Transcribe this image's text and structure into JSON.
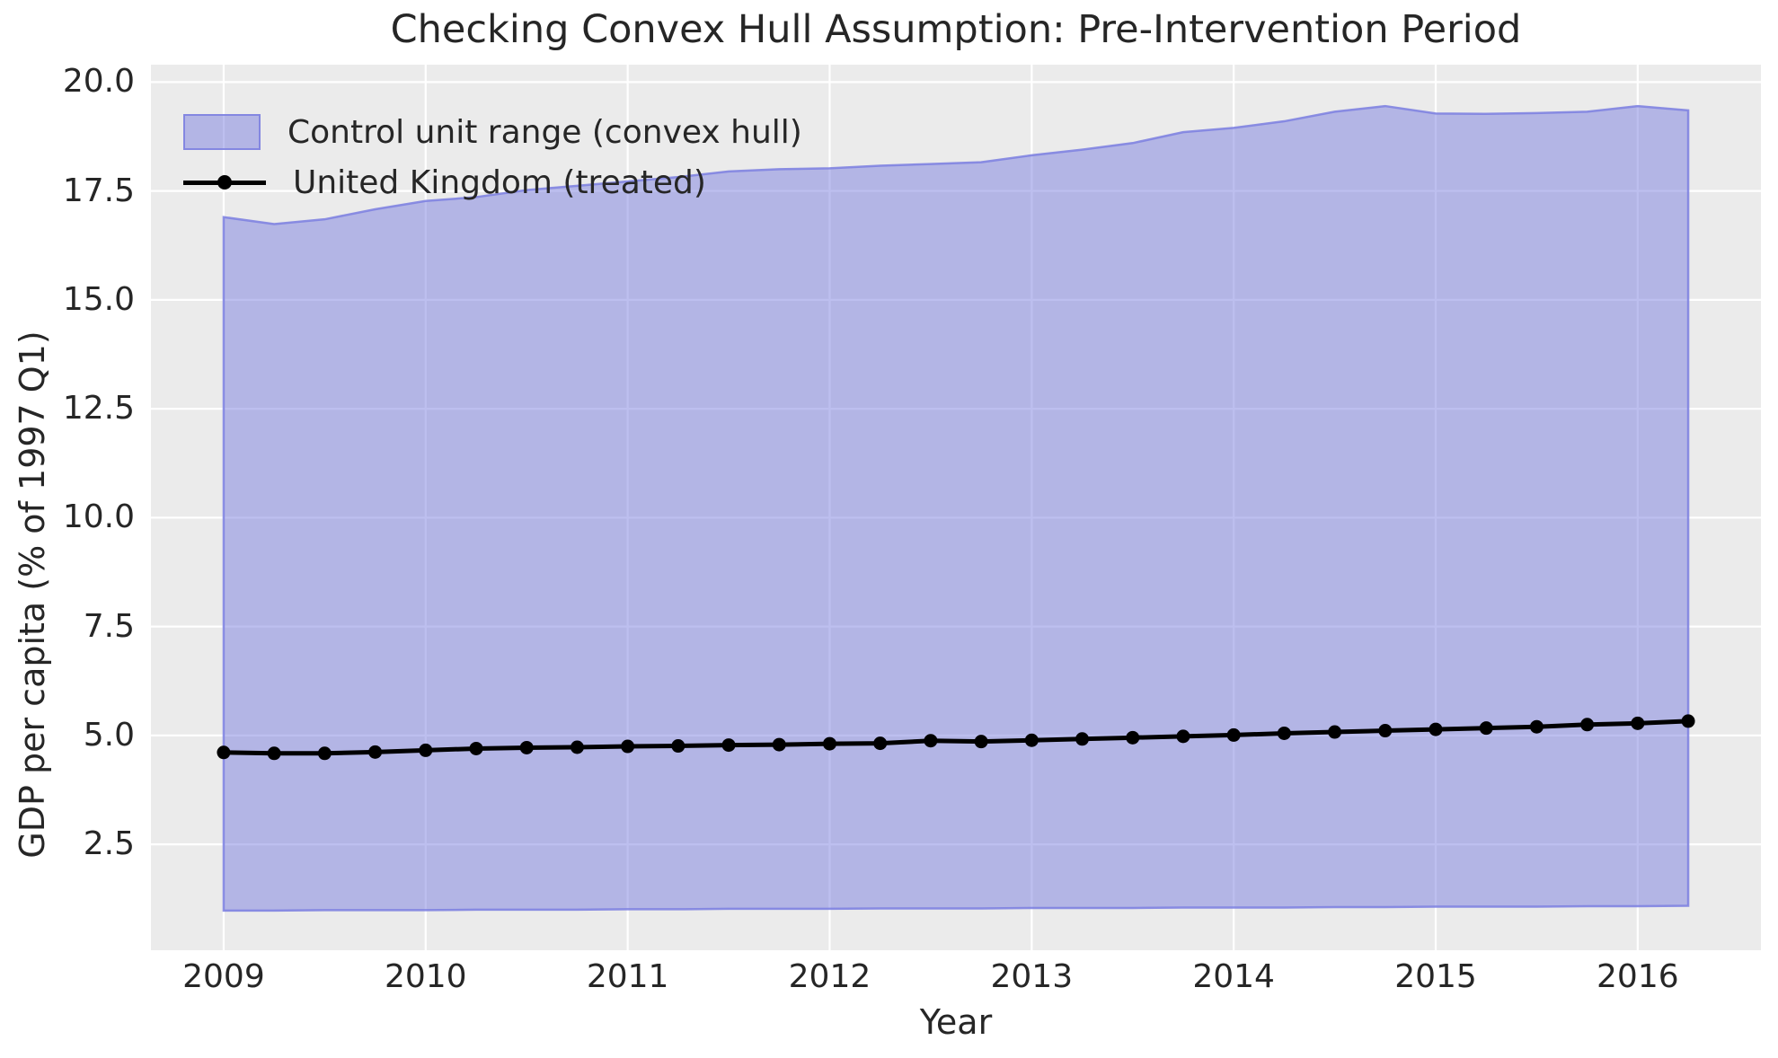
{
  "figure": {
    "title": "Checking Convex Hull Assumption: Pre-Intervention Period",
    "xlabel": "Year",
    "ylabel": "GDP per capita (% of 1997 Q1)"
  },
  "legend": {
    "items": [
      {
        "label": "Control unit range (convex hull)",
        "swatch": "band-patch"
      },
      {
        "label": "United Kingdom (treated)",
        "swatch": "line-with-dot"
      }
    ]
  },
  "colors": {
    "band_fill": "#7b7fe0",
    "band_fill_opacity": 0.5,
    "band_edge": "#7b7fe0",
    "band_edge_opacity": 0.85,
    "treated_line": "#000000",
    "plot_bg": "#ebebeb",
    "grid": "#ffffff",
    "text": "#262626"
  },
  "chart_data": {
    "type": "area",
    "title": "Checking Convex Hull Assumption: Pre-Intervention Period",
    "xlabel": "Year",
    "ylabel": "GDP per capita (% of 1997 Q1)",
    "grid": true,
    "legend_position": "upper left",
    "xlim": [
      2008.64,
      2016.61
    ],
    "ylim": [
      0.07,
      20.4
    ],
    "xticks": [
      2009,
      2010,
      2011,
      2012,
      2013,
      2014,
      2015,
      2016
    ],
    "yticks": [
      2.5,
      5.0,
      7.5,
      10.0,
      12.5,
      15.0,
      17.5,
      20.0
    ],
    "x": [
      2009.0,
      2009.25,
      2009.5,
      2009.75,
      2010.0,
      2010.25,
      2010.5,
      2010.75,
      2011.0,
      2011.25,
      2011.5,
      2011.75,
      2012.0,
      2012.25,
      2012.5,
      2012.75,
      2013.0,
      2013.25,
      2013.5,
      2013.75,
      2014.0,
      2014.25,
      2014.5,
      2014.75,
      2015.0,
      2015.25,
      2015.5,
      2015.75,
      2016.0,
      2016.25
    ],
    "series": [
      {
        "name": "Control unit range (convex hull)",
        "type": "band",
        "upper": [
          16.9,
          16.74,
          16.85,
          17.08,
          17.27,
          17.36,
          17.52,
          17.62,
          17.72,
          17.82,
          17.95,
          18.0,
          18.02,
          18.08,
          18.12,
          18.16,
          18.32,
          18.45,
          18.6,
          18.85,
          18.95,
          19.1,
          19.32,
          19.45,
          19.28,
          19.27,
          19.29,
          19.32,
          19.45,
          19.35
        ],
        "lower": [
          0.98,
          0.98,
          0.99,
          0.99,
          0.99,
          1.0,
          1.0,
          1.0,
          1.01,
          1.01,
          1.02,
          1.02,
          1.02,
          1.03,
          1.03,
          1.03,
          1.04,
          1.04,
          1.04,
          1.05,
          1.05,
          1.05,
          1.06,
          1.06,
          1.07,
          1.07,
          1.07,
          1.08,
          1.08,
          1.09
        ]
      },
      {
        "name": "United Kingdom (treated)",
        "type": "line",
        "values": [
          4.61,
          4.59,
          4.59,
          4.62,
          4.66,
          4.7,
          4.72,
          4.73,
          4.75,
          4.76,
          4.78,
          4.79,
          4.81,
          4.82,
          4.88,
          4.86,
          4.89,
          4.92,
          4.95,
          4.98,
          5.01,
          5.05,
          5.08,
          5.11,
          5.14,
          5.17,
          5.2,
          5.25,
          5.28,
          5.33
        ]
      }
    ]
  }
}
